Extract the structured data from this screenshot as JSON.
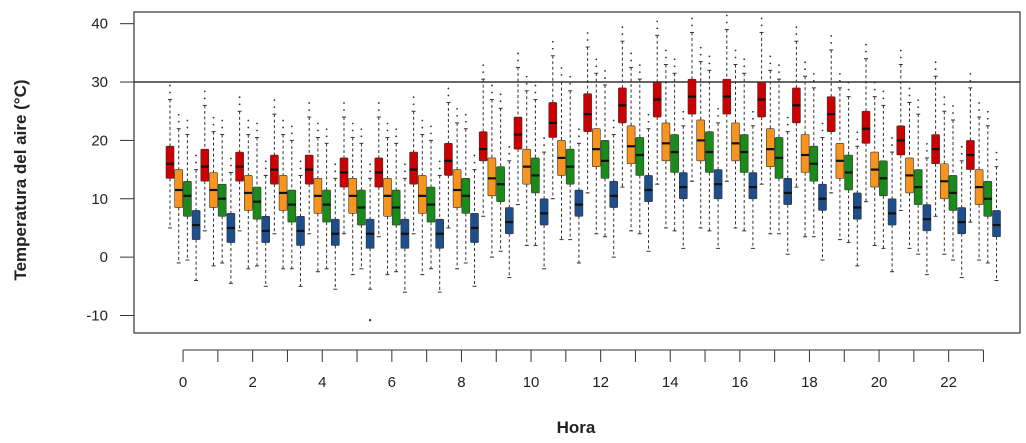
{
  "chart_data": {
    "type": "box",
    "title": "",
    "xlabel": "Hora",
    "ylabel": "Temperatura del aire (°C)",
    "ylim": [
      -13,
      42
    ],
    "x_tick_labels": [
      "0",
      "2",
      "4",
      "6",
      "8",
      "10",
      "12",
      "14",
      "16",
      "18",
      "20",
      "22"
    ],
    "y_tick_labels": [
      "-10",
      "0",
      "10",
      "20",
      "30",
      "40"
    ],
    "y_ticks": [
      -10,
      0,
      10,
      20,
      30,
      40
    ],
    "reference_line": 30,
    "hours": [
      0,
      1,
      2,
      3,
      4,
      5,
      6,
      7,
      8,
      9,
      10,
      11,
      12,
      13,
      14,
      15,
      16,
      17,
      18,
      19,
      20,
      21,
      22,
      23
    ],
    "series": [
      {
        "color": "#cc0000",
        "stats": [
          {
            "q1": 13.5,
            "median": 16,
            "q3": 19,
            "whisker_low": 5,
            "whisker_high": 27
          },
          {
            "q1": 13,
            "median": 15.5,
            "q3": 18.5,
            "whisker_low": 4.5,
            "whisker_high": 26
          },
          {
            "q1": 13,
            "median": 15.5,
            "q3": 18,
            "whisker_low": 4.5,
            "whisker_high": 25
          },
          {
            "q1": 12.5,
            "median": 15,
            "q3": 17.5,
            "whisker_low": 4,
            "whisker_high": 24.5
          },
          {
            "q1": 12.5,
            "median": 15,
            "q3": 17.5,
            "whisker_low": 4,
            "whisker_high": 24
          },
          {
            "q1": 12,
            "median": 14.5,
            "q3": 17,
            "whisker_low": 4,
            "whisker_high": 24
          },
          {
            "q1": 12,
            "median": 14.5,
            "q3": 17,
            "whisker_low": 3.5,
            "whisker_high": 24
          },
          {
            "q1": 12.5,
            "median": 15,
            "q3": 18,
            "whisker_low": 4,
            "whisker_high": 25
          },
          {
            "q1": 14,
            "median": 16.5,
            "q3": 19.5,
            "whisker_low": 5,
            "whisker_high": 26.5
          },
          {
            "q1": 16.5,
            "median": 18.5,
            "q3": 21.5,
            "whisker_low": 7,
            "whisker_high": 30.5
          },
          {
            "q1": 18.5,
            "median": 21,
            "q3": 24,
            "whisker_low": 9,
            "whisker_high": 32.5
          },
          {
            "q1": 20.5,
            "median": 23,
            "q3": 26.5,
            "whisker_low": 10,
            "whisker_high": 34.5
          },
          {
            "q1": 21.5,
            "median": 24.5,
            "q3": 28,
            "whisker_low": 11,
            "whisker_high": 36
          },
          {
            "q1": 23,
            "median": 26,
            "q3": 29,
            "whisker_low": 12,
            "whisker_high": 37
          },
          {
            "q1": 24,
            "median": 27,
            "q3": 30,
            "whisker_low": 12.5,
            "whisker_high": 38
          },
          {
            "q1": 24.5,
            "median": 27.5,
            "q3": 30.5,
            "whisker_low": 13,
            "whisker_high": 38.5
          },
          {
            "q1": 24.5,
            "median": 27.5,
            "q3": 30.5,
            "whisker_low": 13,
            "whisker_high": 39
          },
          {
            "q1": 24,
            "median": 27,
            "q3": 30,
            "whisker_low": 12.5,
            "whisker_high": 38.5
          },
          {
            "q1": 23,
            "median": 26,
            "q3": 29,
            "whisker_low": 12,
            "whisker_high": 37
          },
          {
            "q1": 21.5,
            "median": 24.5,
            "q3": 27.5,
            "whisker_low": 11,
            "whisker_high": 35.5
          },
          {
            "q1": 19.5,
            "median": 22,
            "q3": 25,
            "whisker_low": 9.5,
            "whisker_high": 34
          },
          {
            "q1": 17.5,
            "median": 20,
            "q3": 22.5,
            "whisker_low": 8,
            "whisker_high": 33
          },
          {
            "q1": 16,
            "median": 18.5,
            "q3": 21,
            "whisker_low": 7,
            "whisker_high": 31
          },
          {
            "q1": 15,
            "median": 17.5,
            "q3": 20,
            "whisker_low": 6,
            "whisker_high": 29
          }
        ]
      },
      {
        "color": "#f7941d",
        "stats": [
          {
            "q1": 8.5,
            "median": 11.5,
            "q3": 15,
            "whisker_low": -1,
            "whisker_high": 22
          },
          {
            "q1": 8.5,
            "median": 11.5,
            "q3": 14.5,
            "whisker_low": -1.5,
            "whisker_high": 21.5
          },
          {
            "q1": 8,
            "median": 11,
            "q3": 14,
            "whisker_low": -2,
            "whisker_high": 21
          },
          {
            "q1": 8,
            "median": 11,
            "q3": 14,
            "whisker_low": -2,
            "whisker_high": 21
          },
          {
            "q1": 7.5,
            "median": 10.5,
            "q3": 13.5,
            "whisker_low": -2.5,
            "whisker_high": 20.5
          },
          {
            "q1": 7.5,
            "median": 10.5,
            "q3": 13.5,
            "whisker_low": -3,
            "whisker_high": 20.5
          },
          {
            "q1": 7,
            "median": 10.5,
            "q3": 13.5,
            "whisker_low": -3,
            "whisker_high": 20.5
          },
          {
            "q1": 7.5,
            "median": 10.5,
            "q3": 14,
            "whisker_low": -3,
            "whisker_high": 21
          },
          {
            "q1": 8.5,
            "median": 11.5,
            "q3": 15,
            "whisker_low": -2,
            "whisker_high": 23
          },
          {
            "q1": 10.5,
            "median": 13.5,
            "q3": 17,
            "whisker_low": 0,
            "whisker_high": 27
          },
          {
            "q1": 12.5,
            "median": 15.5,
            "q3": 18.5,
            "whisker_low": 2,
            "whisker_high": 28.5
          },
          {
            "q1": 14,
            "median": 17,
            "q3": 20,
            "whisker_low": 3,
            "whisker_high": 30
          },
          {
            "q1": 15.5,
            "median": 18.5,
            "q3": 22,
            "whisker_low": 4,
            "whisker_high": 31.5
          },
          {
            "q1": 16,
            "median": 19,
            "q3": 22.5,
            "whisker_low": 4.5,
            "whisker_high": 32.5
          },
          {
            "q1": 16.5,
            "median": 19.5,
            "q3": 23,
            "whisker_low": 5,
            "whisker_high": 33
          },
          {
            "q1": 16.5,
            "median": 20,
            "q3": 23.5,
            "whisker_low": 5,
            "whisker_high": 33.5
          },
          {
            "q1": 16.5,
            "median": 19.5,
            "q3": 23,
            "whisker_low": 5,
            "whisker_high": 33
          },
          {
            "q1": 15.5,
            "median": 18.5,
            "q3": 22,
            "whisker_low": 4,
            "whisker_high": 32
          },
          {
            "q1": 14.5,
            "median": 17.5,
            "q3": 21,
            "whisker_low": 3.5,
            "whisker_high": 31
          },
          {
            "q1": 13.5,
            "median": 16.5,
            "q3": 19.5,
            "whisker_low": 3,
            "whisker_high": 29
          },
          {
            "q1": 12,
            "median": 15,
            "q3": 18,
            "whisker_low": 2,
            "whisker_high": 27.5
          },
          {
            "q1": 11,
            "median": 14,
            "q3": 17,
            "whisker_low": 1.5,
            "whisker_high": 26.5
          },
          {
            "q1": 10,
            "median": 13,
            "q3": 16,
            "whisker_low": 0.5,
            "whisker_high": 25
          },
          {
            "q1": 9,
            "median": 12,
            "q3": 15,
            "whisker_low": -0.5,
            "whisker_high": 24
          }
        ]
      },
      {
        "color": "#1a8a1a",
        "stats": [
          {
            "q1": 7,
            "median": 10.5,
            "q3": 13,
            "whisker_low": -0.5,
            "whisker_high": 21
          },
          {
            "q1": 7,
            "median": 10,
            "q3": 12.5,
            "whisker_low": -1,
            "whisker_high": 21
          },
          {
            "q1": 6.5,
            "median": 9.5,
            "q3": 12,
            "whisker_low": -1.5,
            "whisker_high": 20.5
          },
          {
            "q1": 6,
            "median": 9,
            "q3": 11.5,
            "whisker_low": -2,
            "whisker_high": 20
          },
          {
            "q1": 6,
            "median": 9,
            "q3": 11.5,
            "whisker_low": -2,
            "whisker_high": 19.5
          },
          {
            "q1": 5.5,
            "median": 8.5,
            "q3": 11.5,
            "whisker_low": -2,
            "whisker_high": 19.5
          },
          {
            "q1": 5.5,
            "median": 8.5,
            "q3": 11.5,
            "whisker_low": -2.5,
            "whisker_high": 19.5
          },
          {
            "q1": 6,
            "median": 9,
            "q3": 12,
            "whisker_low": -2,
            "whisker_high": 20
          },
          {
            "q1": 7.5,
            "median": 10.5,
            "q3": 13.5,
            "whisker_low": -1,
            "whisker_high": 22
          },
          {
            "q1": 9.5,
            "median": 12.5,
            "q3": 15.5,
            "whisker_low": 1,
            "whisker_high": 25.5
          },
          {
            "q1": 11,
            "median": 14,
            "q3": 17,
            "whisker_low": 2,
            "whisker_high": 27
          },
          {
            "q1": 12.5,
            "median": 15.5,
            "q3": 18.5,
            "whisker_low": 3,
            "whisker_high": 28.5
          },
          {
            "q1": 13.5,
            "median": 16.5,
            "q3": 20,
            "whisker_low": 3.5,
            "whisker_high": 29.5
          },
          {
            "q1": 14,
            "median": 17.5,
            "q3": 20.5,
            "whisker_low": 4,
            "whisker_high": 30.5
          },
          {
            "q1": 14.5,
            "median": 18,
            "q3": 21,
            "whisker_low": 4.5,
            "whisker_high": 31.5
          },
          {
            "q1": 14.5,
            "median": 18,
            "q3": 21.5,
            "whisker_low": 4.5,
            "whisker_high": 32
          },
          {
            "q1": 14.5,
            "median": 18,
            "q3": 21,
            "whisker_low": 4.5,
            "whisker_high": 31.5
          },
          {
            "q1": 13.5,
            "median": 17,
            "q3": 20.5,
            "whisker_low": 4,
            "whisker_high": 30.5
          },
          {
            "q1": 13,
            "median": 16,
            "q3": 19,
            "whisker_low": 3.5,
            "whisker_high": 29
          },
          {
            "q1": 11.5,
            "median": 14.5,
            "q3": 17.5,
            "whisker_low": 2.5,
            "whisker_high": 27.5
          },
          {
            "q1": 10.5,
            "median": 13.5,
            "q3": 16.5,
            "whisker_low": 1.5,
            "whisker_high": 26
          },
          {
            "q1": 9,
            "median": 12,
            "q3": 15,
            "whisker_low": 0.5,
            "whisker_high": 24.5
          },
          {
            "q1": 8,
            "median": 11,
            "q3": 14,
            "whisker_low": -0.5,
            "whisker_high": 23.5
          },
          {
            "q1": 7,
            "median": 10,
            "q3": 13,
            "whisker_low": -1,
            "whisker_high": 22.5
          }
        ]
      },
      {
        "color": "#1f4e8c",
        "stats": [
          {
            "q1": 3,
            "median": 5.5,
            "q3": 8,
            "whisker_low": -4,
            "whisker_high": 15
          },
          {
            "q1": 2.5,
            "median": 5,
            "q3": 7.5,
            "whisker_low": -4.5,
            "whisker_high": 14.5
          },
          {
            "q1": 2.5,
            "median": 4.5,
            "q3": 7,
            "whisker_low": -5,
            "whisker_high": 14
          },
          {
            "q1": 2,
            "median": 4.5,
            "q3": 7,
            "whisker_low": -5,
            "whisker_high": 14
          },
          {
            "q1": 2,
            "median": 4,
            "q3": 6.5,
            "whisker_low": -5.5,
            "whisker_high": 13.5
          },
          {
            "q1": 1.5,
            "median": 4,
            "q3": 6.5,
            "whisker_low": -5.5,
            "whisker_high": 13.5
          },
          {
            "q1": 1.5,
            "median": 4,
            "q3": 6.5,
            "whisker_low": -6,
            "whisker_high": 13.5
          },
          {
            "q1": 1.5,
            "median": 4,
            "q3": 6.5,
            "whisker_low": -6,
            "whisker_high": 14
          },
          {
            "q1": 2.5,
            "median": 5,
            "q3": 7.5,
            "whisker_low": -5,
            "whisker_high": 15
          },
          {
            "q1": 4,
            "median": 6,
            "q3": 8.5,
            "whisker_low": -3.5,
            "whisker_high": 16.5
          },
          {
            "q1": 5.5,
            "median": 7.5,
            "q3": 10,
            "whisker_low": -2,
            "whisker_high": 18
          },
          {
            "q1": 7,
            "median": 9,
            "q3": 11.5,
            "whisker_low": -1,
            "whisker_high": 19.5
          },
          {
            "q1": 8.5,
            "median": 10.5,
            "q3": 13,
            "whisker_low": 0,
            "whisker_high": 21
          },
          {
            "q1": 9.5,
            "median": 11.5,
            "q3": 14,
            "whisker_low": 1,
            "whisker_high": 22
          },
          {
            "q1": 10,
            "median": 12,
            "q3": 14.5,
            "whisker_low": 1.5,
            "whisker_high": 22.5
          },
          {
            "q1": 10,
            "median": 12.5,
            "q3": 15,
            "whisker_low": 1.5,
            "whisker_high": 23
          },
          {
            "q1": 10,
            "median": 12,
            "q3": 14.5,
            "whisker_low": 1.5,
            "whisker_high": 22.5
          },
          {
            "q1": 9,
            "median": 11,
            "q3": 13.5,
            "whisker_low": 0.5,
            "whisker_high": 21.5
          },
          {
            "q1": 8,
            "median": 10,
            "q3": 12.5,
            "whisker_low": -0.5,
            "whisker_high": 20.5
          },
          {
            "q1": 6.5,
            "median": 8.5,
            "q3": 11,
            "whisker_low": -1.5,
            "whisker_high": 19
          },
          {
            "q1": 5.5,
            "median": 7.5,
            "q3": 10,
            "whisker_low": -2.5,
            "whisker_high": 18
          },
          {
            "q1": 4.5,
            "median": 6.5,
            "q3": 9,
            "whisker_low": -3,
            "whisker_high": 17
          },
          {
            "q1": 4,
            "median": 6,
            "q3": 8.5,
            "whisker_low": -3.5,
            "whisker_high": 16.5
          },
          {
            "q1": 3.5,
            "median": 5.5,
            "q3": 8,
            "whisker_low": -4,
            "whisker_high": 15.5
          }
        ]
      }
    ]
  }
}
